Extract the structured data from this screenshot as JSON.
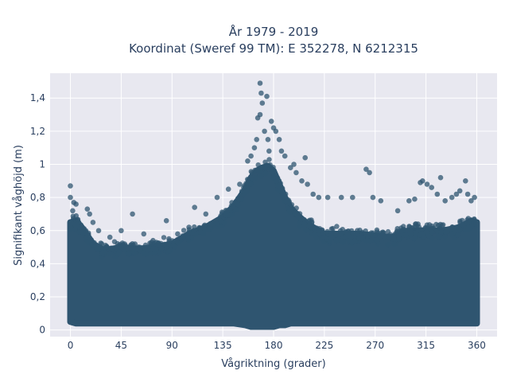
{
  "chart_data": {
    "type": "scatter",
    "title": "År 1979 - 2019",
    "subtitle": "Koordinat (Sweref 99 TM): E 352278, N 6212315",
    "xlabel": "Vågriktning (grader)",
    "ylabel": "Signifikant våghöjd (m)",
    "xlim": [
      -18,
      378
    ],
    "ylim": [
      -0.04,
      1.55
    ],
    "x_ticks": [
      0,
      45,
      90,
      135,
      180,
      225,
      270,
      315,
      360
    ],
    "x_tick_labels": [
      "0",
      "45",
      "90",
      "135",
      "180",
      "225",
      "270",
      "315",
      "360"
    ],
    "y_ticks": [
      0,
      0.2,
      0.4,
      0.6,
      0.8,
      1.0,
      1.2,
      1.4
    ],
    "y_tick_labels": [
      "0",
      "0,2",
      "0,4",
      "0,6",
      "0,8",
      "1",
      "1,2",
      "1,4"
    ],
    "grid": true,
    "legend": "none",
    "marker_color": "#2f5570",
    "envelope": {
      "direction": [
        0,
        5,
        10,
        20,
        30,
        45,
        60,
        75,
        90,
        105,
        120,
        135,
        145,
        155,
        160,
        165,
        170,
        175,
        180,
        185,
        190,
        195,
        200,
        210,
        225,
        240,
        255,
        270,
        285,
        300,
        315,
        330,
        345,
        355,
        360
      ],
      "upper_dense": [
        0.65,
        0.66,
        0.62,
        0.52,
        0.48,
        0.5,
        0.49,
        0.5,
        0.52,
        0.58,
        0.62,
        0.68,
        0.75,
        0.85,
        0.92,
        0.96,
        0.98,
        0.99,
        0.96,
        0.88,
        0.8,
        0.74,
        0.7,
        0.64,
        0.58,
        0.58,
        0.58,
        0.57,
        0.56,
        0.6,
        0.6,
        0.6,
        0.62,
        0.66,
        0.65
      ],
      "lower_dense": [
        0.05,
        0.04,
        0.04,
        0.04,
        0.04,
        0.04,
        0.04,
        0.04,
        0.04,
        0.04,
        0.04,
        0.04,
        0.04,
        0.03,
        0.02,
        0.02,
        0.02,
        0.02,
        0.02,
        0.03,
        0.03,
        0.04,
        0.04,
        0.04,
        0.04,
        0.04,
        0.04,
        0.04,
        0.04,
        0.04,
        0.04,
        0.04,
        0.04,
        0.04,
        0.04
      ]
    },
    "points": [
      [
        0,
        0.87
      ],
      [
        0,
        0.8
      ],
      [
        3,
        0.77
      ],
      [
        5,
        0.76
      ],
      [
        2,
        0.72
      ],
      [
        15,
        0.73
      ],
      [
        17,
        0.7
      ],
      [
        20,
        0.65
      ],
      [
        25,
        0.6
      ],
      [
        35,
        0.56
      ],
      [
        45,
        0.6
      ],
      [
        55,
        0.7
      ],
      [
        65,
        0.58
      ],
      [
        85,
        0.66
      ],
      [
        95,
        0.58
      ],
      [
        105,
        0.62
      ],
      [
        110,
        0.74
      ],
      [
        120,
        0.7
      ],
      [
        130,
        0.8
      ],
      [
        140,
        0.85
      ],
      [
        150,
        0.88
      ],
      [
        157,
        1.02
      ],
      [
        160,
        1.05
      ],
      [
        163,
        1.1
      ],
      [
        165,
        1.15
      ],
      [
        166,
        1.28
      ],
      [
        168,
        1.3
      ],
      [
        168,
        1.49
      ],
      [
        169,
        1.43
      ],
      [
        170,
        1.37
      ],
      [
        172,
        1.2
      ],
      [
        174,
        1.41
      ],
      [
        175,
        1.15
      ],
      [
        176,
        1.08
      ],
      [
        178,
        1.26
      ],
      [
        180,
        1.22
      ],
      [
        182,
        1.2
      ],
      [
        185,
        1.15
      ],
      [
        187,
        1.08
      ],
      [
        190,
        1.05
      ],
      [
        195,
        0.98
      ],
      [
        198,
        1.0
      ],
      [
        200,
        0.95
      ],
      [
        205,
        0.9
      ],
      [
        208,
        1.04
      ],
      [
        210,
        0.88
      ],
      [
        215,
        0.82
      ],
      [
        220,
        0.8
      ],
      [
        228,
        0.8
      ],
      [
        240,
        0.8
      ],
      [
        250,
        0.8
      ],
      [
        262,
        0.97
      ],
      [
        265,
        0.95
      ],
      [
        268,
        0.8
      ],
      [
        275,
        0.78
      ],
      [
        290,
        0.72
      ],
      [
        300,
        0.78
      ],
      [
        305,
        0.79
      ],
      [
        310,
        0.89
      ],
      [
        312,
        0.9
      ],
      [
        316,
        0.88
      ],
      [
        320,
        0.86
      ],
      [
        325,
        0.82
      ],
      [
        328,
        0.92
      ],
      [
        332,
        0.78
      ],
      [
        338,
        0.8
      ],
      [
        342,
        0.82
      ],
      [
        345,
        0.84
      ],
      [
        350,
        0.9
      ],
      [
        352,
        0.82
      ],
      [
        355,
        0.78
      ],
      [
        358,
        0.8
      ]
    ]
  }
}
